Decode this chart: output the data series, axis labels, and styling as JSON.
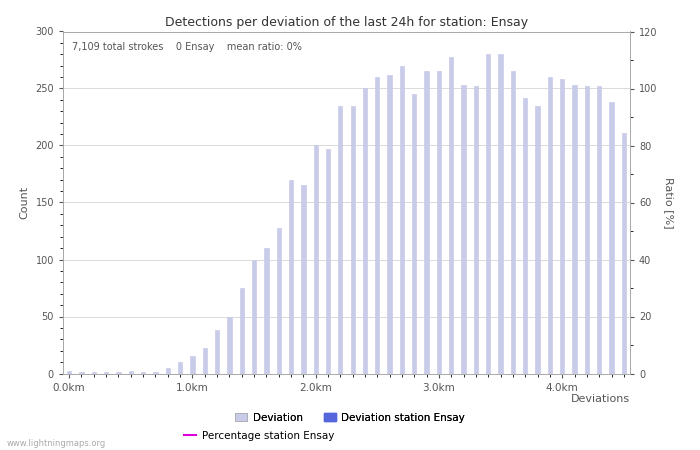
{
  "title": "Detections per deviation of the last 24h for station: Ensay",
  "subtitle": "7,109 total strokes    0 Ensay    mean ratio: 0%",
  "xlabel": "Deviations",
  "ylabel_left": "Count",
  "ylabel_right": "Ratio [%]",
  "watermark": "www.lightningmaps.org",
  "bar_color_deviation": "#c8cce8",
  "bar_color_station": "#5566dd",
  "line_color_percentage": "#dd00dd",
  "ylim_left": [
    0,
    300
  ],
  "ylim_right": [
    0,
    120
  ],
  "yticks_left": [
    0,
    50,
    100,
    150,
    200,
    250,
    300
  ],
  "yticks_right": [
    0,
    20,
    40,
    60,
    80,
    100,
    120
  ],
  "xtick_labels": [
    "0.0km",
    "1.0km",
    "2.0km",
    "3.0km",
    "4.0km"
  ],
  "xtick_positions": [
    0,
    10,
    20,
    30,
    40
  ],
  "bar_values": [
    2,
    1,
    1,
    1,
    1,
    2,
    1,
    1,
    5,
    10,
    15,
    22,
    38,
    50,
    75,
    100,
    110,
    128,
    170,
    165,
    200,
    197,
    235,
    235,
    250,
    260,
    262,
    270,
    245,
    265,
    265,
    278,
    253,
    252,
    280,
    280,
    265,
    242,
    235,
    260,
    258,
    253,
    252,
    252,
    238,
    211
  ],
  "num_bars": 46,
  "bar_width": 0.35
}
